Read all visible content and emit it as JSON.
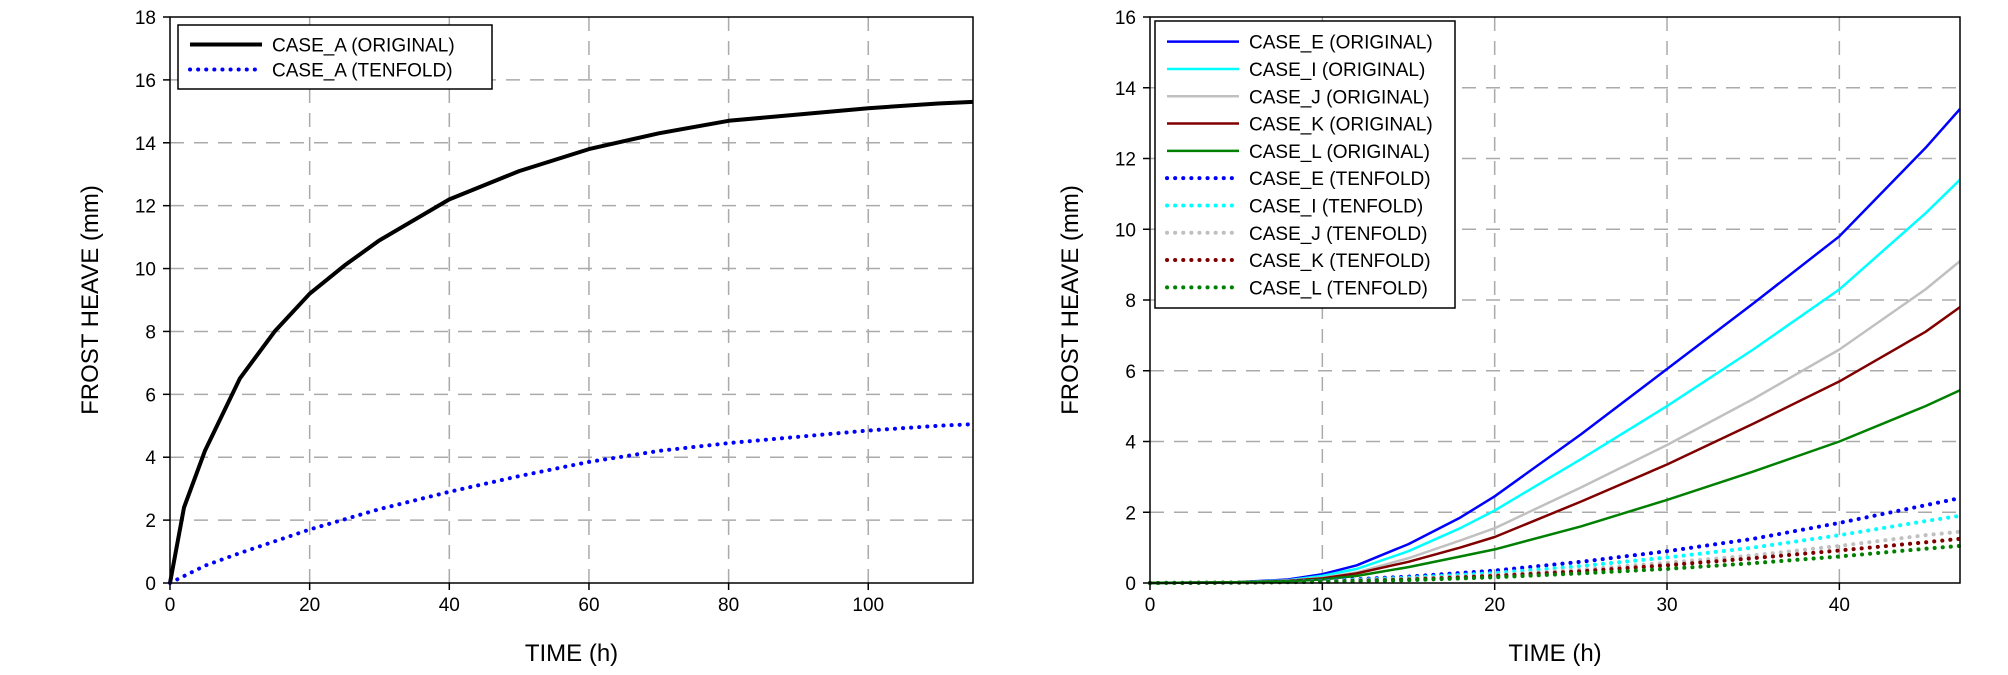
{
  "chart_data": [
    {
      "type": "line",
      "xlabel": "TIME (h)",
      "ylabel": "FROST HEAVE (mm)",
      "xlim": [
        0,
        115
      ],
      "ylim": [
        0,
        18
      ],
      "xticks": [
        0,
        20,
        40,
        60,
        80,
        100
      ],
      "yticks": [
        0,
        2,
        4,
        6,
        8,
        10,
        12,
        14,
        16,
        18
      ],
      "grid": true,
      "legend_position": "top-left",
      "series": [
        {
          "name": "CASE_A (ORIGINAL)",
          "color": "#000000",
          "style": "solid",
          "x": [
            0,
            2,
            5,
            10,
            15,
            20,
            25,
            30,
            40,
            50,
            60,
            70,
            80,
            90,
            100,
            110,
            115
          ],
          "y": [
            0,
            2.4,
            4.2,
            6.5,
            8.0,
            9.2,
            10.1,
            10.9,
            12.2,
            13.1,
            13.8,
            14.3,
            14.7,
            14.9,
            15.1,
            15.25,
            15.3
          ]
        },
        {
          "name": "CASE_A (TENFOLD)",
          "color": "#0000ff",
          "style": "dotted",
          "x": [
            0,
            5,
            10,
            20,
            30,
            40,
            50,
            60,
            70,
            80,
            90,
            100,
            110,
            115
          ],
          "y": [
            0,
            0.55,
            0.95,
            1.7,
            2.35,
            2.9,
            3.4,
            3.85,
            4.2,
            4.45,
            4.65,
            4.85,
            5.0,
            5.05
          ]
        }
      ]
    },
    {
      "type": "line",
      "xlabel": "TIME (h)",
      "ylabel": "FROST HEAVE (mm)",
      "xlim": [
        0,
        47
      ],
      "ylim": [
        0,
        16
      ],
      "xticks": [
        0,
        10,
        20,
        30,
        40
      ],
      "yticks": [
        0,
        2,
        4,
        6,
        8,
        10,
        12,
        14,
        16
      ],
      "grid": true,
      "legend_position": "top-left",
      "series": [
        {
          "name": "CASE_E (ORIGINAL)",
          "color": "#0000ff",
          "style": "solid",
          "x": [
            0,
            5,
            8,
            10,
            12,
            15,
            18,
            20,
            25,
            30,
            35,
            40,
            45,
            47
          ],
          "y": [
            0,
            0.02,
            0.1,
            0.25,
            0.5,
            1.1,
            1.85,
            2.45,
            4.2,
            6.05,
            7.9,
            9.8,
            12.3,
            13.4
          ]
        },
        {
          "name": "CASE_I (ORIGINAL)",
          "color": "#00ffff",
          "style": "solid",
          "x": [
            0,
            5,
            8,
            10,
            12,
            15,
            18,
            20,
            25,
            30,
            35,
            40,
            45,
            47
          ],
          "y": [
            0,
            0.02,
            0.08,
            0.2,
            0.4,
            0.9,
            1.55,
            2.05,
            3.5,
            5.0,
            6.6,
            8.3,
            10.45,
            11.4
          ]
        },
        {
          "name": "CASE_J (ORIGINAL)",
          "color": "#c0c0c0",
          "style": "solid",
          "x": [
            0,
            5,
            8,
            10,
            12,
            15,
            18,
            20,
            25,
            30,
            35,
            40,
            45,
            47
          ],
          "y": [
            0,
            0.02,
            0.07,
            0.15,
            0.3,
            0.7,
            1.2,
            1.55,
            2.7,
            3.9,
            5.2,
            6.6,
            8.3,
            9.1
          ]
        },
        {
          "name": "CASE_K (ORIGINAL)",
          "color": "#800000",
          "style": "solid",
          "x": [
            0,
            5,
            8,
            10,
            12,
            15,
            18,
            20,
            25,
            30,
            35,
            40,
            45,
            47
          ],
          "y": [
            0,
            0.02,
            0.06,
            0.13,
            0.27,
            0.6,
            1.0,
            1.3,
            2.3,
            3.35,
            4.5,
            5.7,
            7.1,
            7.8
          ]
        },
        {
          "name": "CASE_L (ORIGINAL)",
          "color": "#008000",
          "style": "solid",
          "x": [
            0,
            5,
            8,
            10,
            12,
            15,
            18,
            20,
            25,
            30,
            35,
            40,
            45,
            47
          ],
          "y": [
            0,
            0.02,
            0.05,
            0.1,
            0.2,
            0.45,
            0.75,
            0.95,
            1.6,
            2.35,
            3.15,
            4.0,
            5.0,
            5.45
          ]
        },
        {
          "name": "CASE_E (TENFOLD)",
          "color": "#0000ff",
          "style": "dotted",
          "x": [
            0,
            5,
            10,
            15,
            20,
            25,
            30,
            35,
            40,
            45,
            47
          ],
          "y": [
            0,
            0.01,
            0.06,
            0.18,
            0.35,
            0.6,
            0.9,
            1.25,
            1.7,
            2.2,
            2.4
          ]
        },
        {
          "name": "CASE_I (TENFOLD)",
          "color": "#00ffff",
          "style": "dotted",
          "x": [
            0,
            5,
            10,
            15,
            20,
            25,
            30,
            35,
            40,
            45,
            47
          ],
          "y": [
            0,
            0.01,
            0.05,
            0.15,
            0.28,
            0.48,
            0.72,
            1.0,
            1.35,
            1.75,
            1.9
          ]
        },
        {
          "name": "CASE_J (TENFOLD)",
          "color": "#c0c0c0",
          "style": "dotted",
          "x": [
            0,
            5,
            10,
            15,
            20,
            25,
            30,
            35,
            40,
            45,
            47
          ],
          "y": [
            0,
            0.01,
            0.04,
            0.12,
            0.22,
            0.38,
            0.57,
            0.78,
            1.05,
            1.35,
            1.45
          ]
        },
        {
          "name": "CASE_K (TENFOLD)",
          "color": "#800000",
          "style": "dotted",
          "x": [
            0,
            5,
            10,
            15,
            20,
            25,
            30,
            35,
            40,
            45,
            47
          ],
          "y": [
            0,
            0.01,
            0.04,
            0.1,
            0.2,
            0.33,
            0.5,
            0.7,
            0.92,
            1.15,
            1.25
          ]
        },
        {
          "name": "CASE_L (TENFOLD)",
          "color": "#008000",
          "style": "dotted",
          "x": [
            0,
            5,
            10,
            15,
            20,
            25,
            30,
            35,
            40,
            45,
            47
          ],
          "y": [
            0,
            0.01,
            0.03,
            0.08,
            0.16,
            0.27,
            0.4,
            0.56,
            0.75,
            0.97,
            1.05
          ]
        }
      ]
    }
  ]
}
